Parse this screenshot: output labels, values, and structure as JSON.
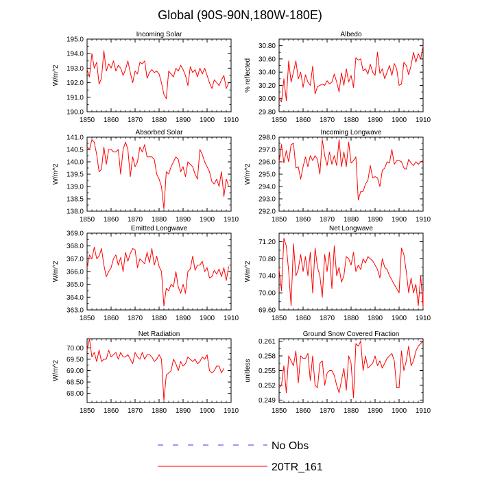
{
  "figure": {
    "title": "Global (90S-90N,180W-180E)",
    "legend": [
      {
        "label": "No Obs",
        "color": "#3333ff",
        "style": "dashed"
      },
      {
        "label": "20TR_161",
        "color": "#ff0000",
        "style": "solid"
      }
    ]
  },
  "chart_data": [
    {
      "type": "line",
      "title": "Incoming Solar",
      "xlabel": "",
      "ylabel": "W/m^2",
      "xlim": [
        1850,
        1910
      ],
      "ylim": [
        190.0,
        195.0
      ],
      "xticks": [
        1850,
        1860,
        1870,
        1880,
        1890,
        1900,
        1910
      ],
      "yticks": [
        190.0,
        191.0,
        192.0,
        193.0,
        194.0,
        195.0
      ],
      "ytick_labels": [
        "190.0",
        "191.0",
        "192.0",
        "193.0",
        "194.0",
        "195.0"
      ],
      "series": [
        {
          "name": "20TR_161",
          "color": "#ff0000",
          "x_start": 1850,
          "values": [
            192.9,
            192.4,
            194.0,
            193.0,
            193.4,
            191.9,
            192.3,
            194.2,
            192.8,
            193.3,
            193.0,
            193.5,
            192.8,
            193.2,
            193.0,
            192.5,
            192.9,
            193.5,
            192.7,
            192.0,
            192.8,
            192.6,
            193.4,
            193.3,
            193.5,
            192.3,
            192.7,
            192.9,
            192.7,
            192.8,
            192.6,
            192.0,
            191.2,
            190.9,
            192.8,
            192.6,
            192.4,
            193.0,
            192.8,
            193.2,
            192.9,
            192.5,
            191.8,
            193.1,
            192.7,
            192.9,
            192.4,
            193.0,
            192.6,
            193.0,
            192.5,
            192.0,
            191.6,
            192.2,
            192.0,
            191.8,
            192.2,
            192.5,
            191.6,
            192.0
          ]
        }
      ]
    },
    {
      "type": "line",
      "title": "Albedo",
      "xlabel": "",
      "ylabel": "% reflected",
      "xlim": [
        1850,
        1910
      ],
      "ylim": [
        29.8,
        30.9
      ],
      "xticks": [
        1850,
        1860,
        1870,
        1880,
        1890,
        1900,
        1910
      ],
      "yticks": [
        29.8,
        30.0,
        30.2,
        30.4,
        30.6,
        30.8
      ],
      "ytick_labels": [
        "29.80",
        "30.00",
        "30.20",
        "30.40",
        "30.60",
        "30.80"
      ],
      "series": [
        {
          "name": "20TR_161",
          "color": "#ff0000",
          "x_start": 1850,
          "values": [
            30.0,
            29.95,
            30.3,
            29.97,
            30.57,
            30.25,
            30.4,
            30.57,
            30.3,
            30.4,
            30.17,
            30.36,
            30.25,
            30.2,
            30.49,
            30.07,
            30.18,
            30.2,
            30.22,
            30.2,
            30.27,
            30.22,
            30.25,
            30.37,
            30.25,
            30.1,
            30.39,
            30.2,
            30.45,
            30.25,
            30.35,
            30.17,
            30.62,
            30.58,
            30.6,
            30.42,
            30.45,
            30.37,
            30.52,
            30.4,
            30.35,
            30.7,
            30.38,
            30.45,
            30.3,
            30.4,
            30.5,
            30.35,
            30.53,
            30.45,
            30.2,
            30.22,
            30.55,
            30.5,
            30.36,
            30.5,
            30.7,
            30.55,
            30.68,
            30.6,
            30.8
          ]
        }
      ]
    },
    {
      "type": "line",
      "title": "Absorbed Solar",
      "xlabel": "",
      "ylabel": "W/m^2",
      "xlim": [
        1850,
        1910
      ],
      "ylim": [
        138.0,
        141.0
      ],
      "xticks": [
        1850,
        1860,
        1870,
        1880,
        1890,
        1900,
        1910
      ],
      "yticks": [
        138.0,
        138.5,
        139.0,
        139.5,
        140.0,
        140.5,
        141.0
      ],
      "ytick_labels": [
        "138.0",
        "138.5",
        "139.0",
        "139.5",
        "140.0",
        "140.5",
        "141.0"
      ],
      "series": [
        {
          "name": "20TR_161",
          "color": "#ff0000",
          "x_start": 1850,
          "values": [
            140.6,
            140.5,
            140.9,
            140.8,
            140.3,
            139.6,
            139.7,
            140.6,
            139.9,
            140.5,
            140.5,
            140.4,
            140.4,
            140.5,
            139.5,
            140.5,
            140.8,
            140.5,
            139.4,
            140.2,
            139.8,
            140.0,
            140.6,
            140.4,
            140.7,
            140.2,
            140.2,
            140.2,
            140.1,
            139.5,
            139.3,
            139.0,
            138.1,
            139.6,
            139.5,
            139.8,
            140.0,
            140.2,
            140.1,
            139.6,
            139.8,
            139.4,
            140.0,
            139.9,
            139.8,
            139.5,
            139.3,
            140.5,
            140.3,
            140.0,
            139.8,
            139.6,
            139.2,
            139.1,
            139.3,
            139.0,
            139.6,
            138.6,
            139.3,
            139.0
          ]
        }
      ]
    },
    {
      "type": "line",
      "title": "Incoming Longwave",
      "xlabel": "",
      "ylabel": "W/m^2",
      "xlim": [
        1850,
        1910
      ],
      "ylim": [
        292.0,
        298.0
      ],
      "xticks": [
        1850,
        1860,
        1870,
        1880,
        1890,
        1900,
        1910
      ],
      "yticks": [
        292.0,
        293.0,
        294.0,
        295.0,
        296.0,
        297.0,
        298.0
      ],
      "ytick_labels": [
        "292.0",
        "293.0",
        "294.0",
        "295.0",
        "296.0",
        "297.0",
        "298.0"
      ],
      "series": [
        {
          "name": "20TR_161",
          "color": "#ff0000",
          "x_start": 1850,
          "values": [
            296.0,
            297.4,
            295.9,
            296.9,
            296.0,
            297.4,
            297.5,
            295.5,
            295.6,
            294.6,
            295.6,
            296.4,
            295.6,
            296.5,
            296.1,
            296.5,
            296.2,
            295.0,
            297.8,
            296.5,
            295.7,
            296.8,
            295.8,
            296.5,
            295.7,
            297.8,
            295.6,
            296.8,
            295.6,
            297.6,
            295.9,
            296.1,
            296.4,
            292.9,
            293.6,
            293.6,
            294.2,
            294.5,
            295.7,
            294.7,
            294.8,
            294.7,
            294.0,
            295.3,
            295.5,
            296.0,
            295.9,
            297.0,
            295.8,
            296.1,
            296.1,
            296.0,
            295.5,
            295.4,
            296.2,
            295.9,
            295.7,
            296.0,
            295.8,
            296.0,
            296.1
          ]
        }
      ]
    },
    {
      "type": "line",
      "title": "Emitted Longwave",
      "xlabel": "",
      "ylabel": "W/m^2",
      "xlim": [
        1850,
        1910
      ],
      "ylim": [
        363.0,
        369.0
      ],
      "xticks": [
        1850,
        1860,
        1870,
        1880,
        1890,
        1900,
        1910
      ],
      "yticks": [
        363.0,
        364.0,
        365.0,
        366.0,
        367.0,
        368.0,
        369.0
      ],
      "ytick_labels": [
        "363.0",
        "364.0",
        "365.0",
        "366.0",
        "367.0",
        "368.0",
        "369.0"
      ],
      "series": [
        {
          "name": "20TR_161",
          "color": "#ff0000",
          "x_start": 1850,
          "values": [
            366.3,
            367.3,
            367.0,
            367.9,
            367.0,
            367.2,
            367.8,
            366.5,
            365.6,
            366.0,
            366.3,
            367.0,
            367.3,
            366.5,
            367.1,
            366.0,
            367.5,
            366.8,
            367.4,
            367.8,
            367.7,
            366.3,
            367.0,
            366.8,
            366.6,
            367.5,
            366.7,
            367.8,
            366.5,
            367.2,
            366.4,
            366.0,
            363.3,
            364.7,
            364.5,
            365.0,
            364.8,
            366.0,
            364.8,
            364.3,
            365.0,
            364.3,
            366.0,
            366.2,
            367.2,
            366.1,
            366.5,
            366.5,
            366.8,
            366.0,
            366.3,
            365.5,
            365.6,
            366.1,
            365.8,
            366.2,
            365.6,
            366.3,
            365.3,
            366.4
          ]
        }
      ]
    },
    {
      "type": "line",
      "title": "Net Longwave",
      "xlabel": "",
      "ylabel": "W/m^2",
      "xlim": [
        1850,
        1910
      ],
      "ylim": [
        69.6,
        71.4
      ],
      "xticks": [
        1850,
        1860,
        1870,
        1880,
        1890,
        1900,
        1910
      ],
      "yticks": [
        69.6,
        70.0,
        70.4,
        70.8,
        71.2
      ],
      "ytick_labels": [
        "69.60",
        "70.00",
        "70.40",
        "70.80",
        "71.20"
      ],
      "series": [
        {
          "name": "20TR_161",
          "color": "#ff0000",
          "x_start": 1850,
          "values": [
            70.55,
            70.05,
            71.28,
            71.1,
            70.5,
            69.7,
            71.15,
            70.4,
            70.55,
            70.9,
            70.5,
            70.85,
            70.4,
            70.95,
            70.0,
            71.05,
            70.6,
            70.4,
            69.9,
            70.9,
            70.5,
            70.95,
            70.1,
            71.1,
            70.4,
            70.6,
            70.25,
            70.4,
            70.85,
            70.8,
            70.65,
            70.95,
            70.5,
            70.65,
            70.55,
            70.8,
            70.7,
            70.85,
            70.8,
            70.75,
            70.65,
            70.55,
            70.35,
            70.8,
            70.6,
            70.55,
            70.4,
            70.3,
            70.2,
            70.1,
            70.0,
            71.05,
            70.9,
            70.5,
            70.0,
            70.35,
            70.0,
            70.2,
            69.7,
            70.4,
            69.65,
            70.05
          ]
        }
      ]
    },
    {
      "type": "line",
      "title": "Net Radiation",
      "xlabel": "",
      "ylabel": "W/m^2",
      "xlim": [
        1850,
        1910
      ],
      "ylim": [
        67.6,
        70.4
      ],
      "xticks": [
        1850,
        1860,
        1870,
        1880,
        1890,
        1900,
        1910
      ],
      "yticks": [
        68.0,
        68.5,
        69.0,
        69.5,
        70.0
      ],
      "ytick_labels": [
        "68.00",
        "68.50",
        "69.00",
        "69.50",
        "70.00"
      ],
      "series": [
        {
          "name": "20TR_161",
          "color": "#ff0000",
          "x_start": 1850,
          "values": [
            69.9,
            70.4,
            69.6,
            69.8,
            69.4,
            69.9,
            69.4,
            69.5,
            69.5,
            69.9,
            69.6,
            69.7,
            69.8,
            69.5,
            69.8,
            69.6,
            69.6,
            69.7,
            69.5,
            69.3,
            69.8,
            69.6,
            69.5,
            69.8,
            69.5,
            69.7,
            69.7,
            69.6,
            69.4,
            69.5,
            69.7,
            69.5,
            67.7,
            68.8,
            68.9,
            69.0,
            69.5,
            69.3,
            69.0,
            69.4,
            69.2,
            69.3,
            69.6,
            69.5,
            69.4,
            69.5,
            69.3,
            69.4,
            69.6,
            69.5,
            69.7,
            69.0,
            68.9,
            69.0,
            69.2,
            69.2,
            68.9,
            69.1
          ]
        }
      ]
    },
    {
      "type": "line",
      "title": "Ground Snow Covered Fraction",
      "xlabel": "",
      "ylabel": "unitless",
      "xlim": [
        1850,
        1910
      ],
      "ylim": [
        0.2485,
        0.2615
      ],
      "xticks": [
        1850,
        1860,
        1870,
        1880,
        1890,
        1900,
        1910
      ],
      "yticks": [
        0.249,
        0.252,
        0.255,
        0.258,
        0.261
      ],
      "ytick_labels": [
        "0.249",
        "0.252",
        "0.255",
        "0.258",
        "0.261"
      ],
      "series": [
        {
          "name": "20TR_161",
          "color": "#ff0000",
          "x_start": 1850,
          "values": [
            0.2515,
            0.252,
            0.256,
            0.2505,
            0.258,
            0.257,
            0.256,
            0.259,
            0.2525,
            0.258,
            0.2575,
            0.2575,
            0.2585,
            0.253,
            0.258,
            0.252,
            0.2515,
            0.2565,
            0.257,
            0.252,
            0.2545,
            0.255,
            0.255,
            0.254,
            0.252,
            0.2505,
            0.253,
            0.2555,
            0.251,
            0.258,
            0.2565,
            0.2495,
            0.2605,
            0.26,
            0.261,
            0.255,
            0.258,
            0.2555,
            0.256,
            0.2565,
            0.258,
            0.256,
            0.257,
            0.2555,
            0.2565,
            0.2575,
            0.258,
            0.2585,
            0.257,
            0.2515,
            0.2515,
            0.259,
            0.255,
            0.257,
            0.26,
            0.256,
            0.257,
            0.259,
            0.26,
            0.2605,
            0.261
          ]
        }
      ]
    }
  ]
}
